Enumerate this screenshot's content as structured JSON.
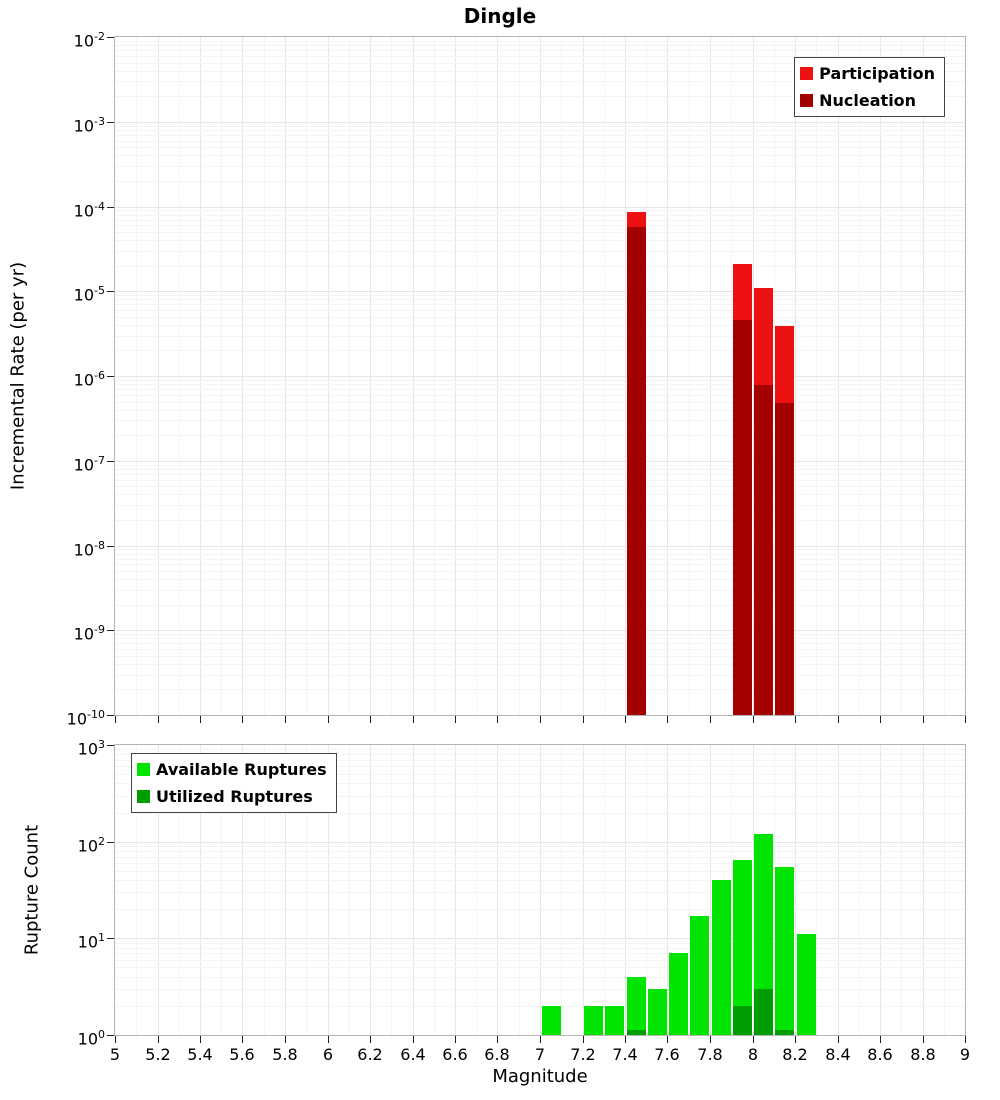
{
  "page": {
    "title": "Dingle"
  },
  "x_ticks": [
    "5",
    "5.2",
    "5.4",
    "5.6",
    "5.8",
    "6",
    "6.2",
    "6.4",
    "6.6",
    "6.8",
    "7",
    "7.2",
    "7.4",
    "7.6",
    "7.8",
    "8",
    "8.2",
    "8.4",
    "8.6",
    "8.8",
    "9"
  ],
  "chart_data": [
    {
      "type": "bar",
      "title": "Dingle",
      "xlabel": "Magnitude",
      "ylabel": "Incremental Rate (per yr)",
      "x_scale": "linear",
      "y_scale": "log",
      "xlim": [
        5,
        9
      ],
      "ylim": [
        1e-10,
        0.01
      ],
      "y_tick_exponents": [
        -2,
        -3,
        -4,
        -5,
        -6,
        -7,
        -8,
        -9,
        -10
      ],
      "bin_width": 0.1,
      "grid": true,
      "legend_position": "top-right",
      "series": [
        {
          "name": "Participation",
          "color": "#ee1111",
          "points": [
            [
              7.45,
              8.5e-05
            ],
            [
              7.95,
              2.1e-05
            ],
            [
              8.05,
              1.1e-05
            ],
            [
              8.15,
              3.9e-06
            ]
          ]
        },
        {
          "name": "Nucleation",
          "color": "#a40000",
          "points": [
            [
              7.45,
              5.8e-05
            ],
            [
              7.95,
              4.6e-06
            ],
            [
              8.05,
              7.8e-07
            ],
            [
              8.15,
              4.8e-07
            ]
          ]
        }
      ]
    },
    {
      "type": "bar",
      "title": "",
      "xlabel": "Magnitude",
      "ylabel": "Rupture Count",
      "x_scale": "linear",
      "y_scale": "log",
      "xlim": [
        5,
        9
      ],
      "ylim": [
        1,
        1000
      ],
      "y_tick_exponents": [
        3,
        2,
        1,
        0
      ],
      "bin_width": 0.1,
      "grid": true,
      "legend_position": "top-left",
      "series": [
        {
          "name": "Available Ruptures",
          "color": "#00e400",
          "points": [
            [
              7.05,
              2
            ],
            [
              7.25,
              2
            ],
            [
              7.35,
              2
            ],
            [
              7.45,
              4
            ],
            [
              7.55,
              3
            ],
            [
              7.65,
              7
            ],
            [
              7.75,
              17
            ],
            [
              7.85,
              40
            ],
            [
              7.95,
              65
            ],
            [
              8.05,
              120
            ],
            [
              8.15,
              55
            ],
            [
              8.25,
              11
            ]
          ]
        },
        {
          "name": "Utilized Ruptures",
          "color": "#009d00",
          "points": [
            [
              7.45,
              1
            ],
            [
              7.95,
              2
            ],
            [
              8.05,
              3
            ],
            [
              8.15,
              1
            ]
          ]
        }
      ]
    }
  ]
}
